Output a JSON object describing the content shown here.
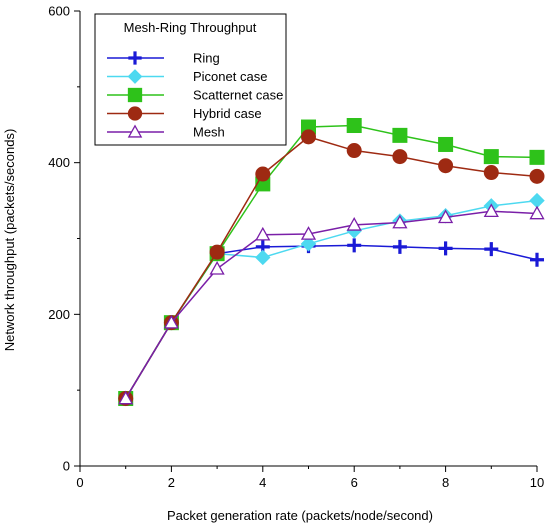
{
  "chart_data": {
    "type": "line",
    "title": "",
    "xlabel": "Packet generation rate (packets/node/second)",
    "ylabel": "Network throughput (packets/seconds)",
    "xlim": [
      0,
      10
    ],
    "ylim": [
      0,
      600
    ],
    "x_ticks": [
      0,
      2,
      4,
      6,
      8,
      10
    ],
    "y_ticks": [
      0,
      200,
      400,
      600
    ],
    "grid": false,
    "legend": {
      "title": "Mesh-Ring Throughput",
      "placement": "top-left"
    },
    "x": [
      1,
      2,
      3,
      4,
      5,
      6,
      7,
      8,
      9,
      10
    ],
    "series": [
      {
        "name": "Ring",
        "color": "#1a1ad6",
        "marker": "plus",
        "values": [
          89,
          189,
          280,
          289,
          290,
          291,
          289,
          287,
          286,
          272
        ]
      },
      {
        "name": "Piconet case",
        "color": "#4dd9f0",
        "marker": "diamond",
        "values": [
          89,
          189,
          280,
          275,
          293,
          310,
          323,
          330,
          343,
          350
        ]
      },
      {
        "name": "Scatternet case",
        "color": "#2ec21a",
        "marker": "square",
        "values": [
          89,
          189,
          280,
          372,
          447,
          449,
          436,
          424,
          408,
          407
        ]
      },
      {
        "name": "Hybrid case",
        "color": "#9e2a12",
        "marker": "circle",
        "values": [
          89,
          189,
          282,
          385,
          434,
          416,
          408,
          396,
          387,
          382
        ]
      },
      {
        "name": "Mesh",
        "color": "#7a1fa8",
        "marker": "triangle",
        "values": [
          89,
          189,
          260,
          305,
          306,
          318,
          321,
          328,
          336,
          333
        ]
      }
    ]
  }
}
